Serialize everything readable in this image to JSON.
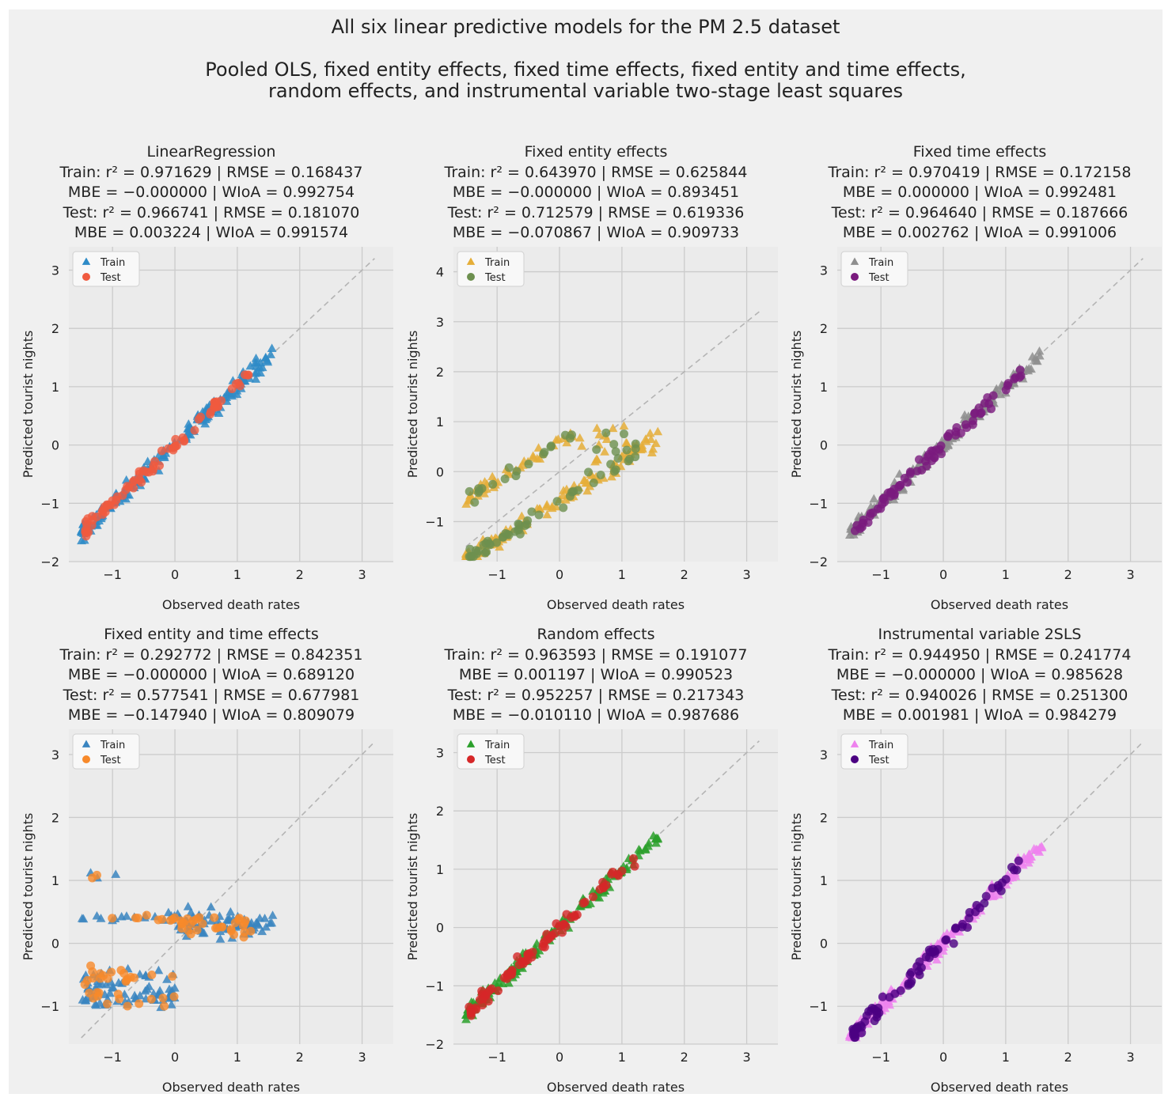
{
  "figure": {
    "title": "All six linear predictive models for the PM 2.5 dataset",
    "subtitle_line1": "Pooled OLS, fixed entity effects, fixed time effects, fixed entity and time effects,",
    "subtitle_line2": "random effects, and instrumental variable two-stage least squares"
  },
  "colors": {
    "background": "#f0f0f0",
    "plot_bg": "#ebebeb",
    "grid": "#cbcbcb",
    "diagonal": "#b4b4b4"
  },
  "chart_data": [
    {
      "type": "scatter",
      "title": "LinearRegression",
      "stats": [
        "Train: r² = 0.971629 | RMSE = 0.168437",
        "MBE = −0.000000 | WIoA = 0.992754",
        "Test: r² = 0.966741 | RMSE = 0.181070",
        "MBE = 0.003224 | WIoA = 0.991574"
      ],
      "xlabel": "Observed death rates",
      "ylabel": "Predicted tourist nights",
      "xlim": [
        -1.7,
        3.5
      ],
      "ylim": [
        -2.0,
        3.4
      ],
      "xticks": [
        -1,
        0,
        1,
        2,
        3
      ],
      "yticks": [
        -2,
        -1,
        0,
        1,
        2,
        3
      ],
      "legend": "top-left",
      "grid": true,
      "diagonal": true,
      "series": [
        {
          "name": "Train",
          "marker": "triangle",
          "color": "#2e8bc7",
          "pattern": "identity"
        },
        {
          "name": "Test",
          "marker": "circle",
          "color": "#f05a3f",
          "pattern": "identity"
        }
      ]
    },
    {
      "type": "scatter",
      "title": "Fixed entity effects",
      "stats": [
        "Train: r² = 0.643970 | RMSE = 0.625844",
        "MBE = −0.000000 | WIoA = 0.893451",
        "Test: r² = 0.712579 | RMSE = 0.619336",
        "MBE = −0.070867 | WIoA = 0.909733"
      ],
      "xlabel": "Observed death rates",
      "ylabel": "Predicted tourist nights",
      "xlim": [
        -1.7,
        3.5
      ],
      "ylim": [
        -1.8,
        4.5
      ],
      "xticks": [
        -1,
        0,
        1,
        2,
        3
      ],
      "yticks": [
        -1,
        0,
        1,
        2,
        3,
        4
      ],
      "legend": "top-left",
      "grid": true,
      "diagonal": true,
      "series": [
        {
          "name": "Train",
          "marker": "triangle",
          "color": "#e5ae38",
          "pattern": "entity"
        },
        {
          "name": "Test",
          "marker": "circle",
          "color": "#6d904f",
          "pattern": "entity"
        }
      ]
    },
    {
      "type": "scatter",
      "title": "Fixed time effects",
      "stats": [
        "Train: r² = 0.970419 | RMSE = 0.172158",
        "MBE = 0.000000 | WIoA = 0.992481",
        "Test: r² = 0.964640 | RMSE = 0.187666",
        "MBE = 0.002762 | WIoA = 0.991006"
      ],
      "xlabel": "Observed death rates",
      "ylabel": "Predicted tourist nights",
      "xlim": [
        -1.7,
        3.5
      ],
      "ylim": [
        -2.0,
        3.4
      ],
      "xticks": [
        -1,
        0,
        1,
        2,
        3
      ],
      "yticks": [
        -2,
        -1,
        0,
        1,
        2,
        3
      ],
      "legend": "top-left",
      "grid": true,
      "diagonal": true,
      "series": [
        {
          "name": "Train",
          "marker": "triangle",
          "color": "#8e8e8e",
          "pattern": "identity"
        },
        {
          "name": "Test",
          "marker": "circle",
          "color": "#7a1a7e",
          "pattern": "identity"
        }
      ]
    },
    {
      "type": "scatter",
      "title": "Fixed entity and time effects",
      "stats": [
        "Train: r² = 0.292772 | RMSE = 0.842351",
        "MBE = −0.000000 | WIoA = 0.689120",
        "Test: r² = 0.577541 | RMSE = 0.677981",
        "MBE = −0.147940 | WIoA = 0.809079"
      ],
      "xlabel": "Observed death rates",
      "ylabel": "Predicted tourist nights",
      "xlim": [
        -1.7,
        3.5
      ],
      "ylim": [
        -1.6,
        3.4
      ],
      "xticks": [
        -1,
        0,
        1,
        2,
        3
      ],
      "yticks": [
        -1,
        0,
        1,
        2,
        3
      ],
      "legend": "top-left",
      "grid": true,
      "diagonal": true,
      "series": [
        {
          "name": "Train",
          "marker": "triangle",
          "color": "#3a85c0",
          "pattern": "both"
        },
        {
          "name": "Test",
          "marker": "circle",
          "color": "#f7892a",
          "pattern": "both"
        }
      ]
    },
    {
      "type": "scatter",
      "title": "Random effects",
      "stats": [
        "Train: r² = 0.963593 | RMSE = 0.191077",
        "MBE = 0.001197 | WIoA = 0.990523",
        "Test: r² = 0.952257 | RMSE = 0.217343",
        "MBE = −0.010110 | WIoA = 0.987686"
      ],
      "xlabel": "Observed death rates",
      "ylabel": "Predicted tourist nights",
      "xlim": [
        -1.7,
        3.5
      ],
      "ylim": [
        -2.0,
        3.4
      ],
      "xticks": [
        -1,
        0,
        1,
        2,
        3
      ],
      "yticks": [
        -2,
        -1,
        0,
        1,
        2,
        3
      ],
      "legend": "top-left",
      "grid": true,
      "diagonal": true,
      "series": [
        {
          "name": "Train",
          "marker": "triangle",
          "color": "#2ca02c",
          "pattern": "identity"
        },
        {
          "name": "Test",
          "marker": "circle",
          "color": "#d62728",
          "pattern": "identity"
        }
      ]
    },
    {
      "type": "scatter",
      "title": "Instrumental variable 2SLS",
      "stats": [
        "Train: r² = 0.944950 | RMSE = 0.241774",
        "MBE = −0.000000 | WIoA = 0.985628",
        "Test: r² = 0.940026 | RMSE = 0.251300",
        "MBE = 0.001981 | WIoA = 0.984279"
      ],
      "xlabel": "Observed death rates",
      "ylabel": "Predicted tourist nights",
      "xlim": [
        -1.7,
        3.5
      ],
      "ylim": [
        -1.6,
        3.4
      ],
      "xticks": [
        -1,
        0,
        1,
        2,
        3
      ],
      "yticks": [
        -1,
        0,
        1,
        2,
        3
      ],
      "legend": "top-left",
      "grid": true,
      "diagonal": true,
      "series": [
        {
          "name": "Train",
          "marker": "triangle",
          "color": "#ee82ee",
          "pattern": "identity"
        },
        {
          "name": "Test",
          "marker": "circle",
          "color": "#4b0082",
          "pattern": "identity"
        }
      ]
    }
  ]
}
